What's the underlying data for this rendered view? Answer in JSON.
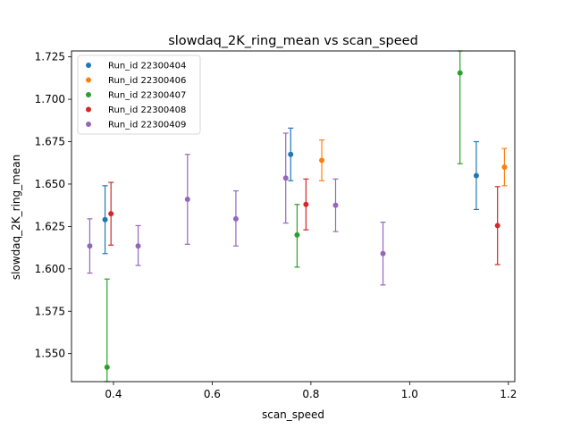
{
  "chart_data": {
    "type": "scatter",
    "title": "slowdaq_2K_ring_mean vs scan_speed",
    "xlabel": "scan_speed",
    "ylabel": "slowdaq_2K_ring_mean",
    "xlim": [
      0.315,
      1.213
    ],
    "ylim": [
      1.5335,
      1.7285
    ],
    "x_ticks": [
      0.4,
      0.6,
      0.8,
      1.0,
      1.2
    ],
    "x_tick_labels": [
      "0.4",
      "0.6",
      "0.8",
      "1.0",
      "1.2"
    ],
    "y_ticks": [
      1.55,
      1.575,
      1.6,
      1.625,
      1.65,
      1.675,
      1.7,
      1.725
    ],
    "y_tick_labels": [
      "1.550",
      "1.575",
      "1.600",
      "1.625",
      "1.650",
      "1.675",
      "1.700",
      "1.725"
    ],
    "grid": false,
    "legend_position": "top-left",
    "series": [
      {
        "name": "Run_id 22300404",
        "color": "#1f77b4",
        "points": [
          {
            "x": 0.383,
            "y": 1.629,
            "err_low": 1.609,
            "err_high": 1.649
          },
          {
            "x": 0.759,
            "y": 1.6675,
            "err_low": 1.652,
            "err_high": 1.683
          },
          {
            "x": 1.135,
            "y": 1.655,
            "err_low": 1.635,
            "err_high": 1.675
          }
        ]
      },
      {
        "name": "Run_id 22300406",
        "color": "#ff7f0e",
        "points": [
          {
            "x": 0.822,
            "y": 1.664,
            "err_low": 1.652,
            "err_high": 1.676
          },
          {
            "x": 1.192,
            "y": 1.66,
            "err_low": 1.649,
            "err_high": 1.671
          }
        ]
      },
      {
        "name": "Run_id 22300407",
        "color": "#2ca02c",
        "points": [
          {
            "x": 0.387,
            "y": 1.542,
            "err_low": 1.5335,
            "err_high": 1.594
          },
          {
            "x": 0.772,
            "y": 1.62,
            "err_low": 1.601,
            "err_high": 1.638
          },
          {
            "x": 1.102,
            "y": 1.7155,
            "err_low": 1.662,
            "err_high": 1.7285
          }
        ]
      },
      {
        "name": "Run_id 22300408",
        "color": "#d62728",
        "points": [
          {
            "x": 0.395,
            "y": 1.6325,
            "err_low": 1.614,
            "err_high": 1.651
          },
          {
            "x": 0.79,
            "y": 1.638,
            "err_low": 1.623,
            "err_high": 1.653
          },
          {
            "x": 1.178,
            "y": 1.6255,
            "err_low": 1.6025,
            "err_high": 1.6485
          }
        ]
      },
      {
        "name": "Run_id 22300409",
        "color": "#9467bd",
        "points": [
          {
            "x": 0.352,
            "y": 1.6135,
            "err_low": 1.5975,
            "err_high": 1.6295
          },
          {
            "x": 0.45,
            "y": 1.6135,
            "err_low": 1.602,
            "err_high": 1.6255
          },
          {
            "x": 0.55,
            "y": 1.641,
            "err_low": 1.6145,
            "err_high": 1.6675
          },
          {
            "x": 0.648,
            "y": 1.6295,
            "err_low": 1.6135,
            "err_high": 1.646
          },
          {
            "x": 0.749,
            "y": 1.6535,
            "err_low": 1.627,
            "err_high": 1.68
          },
          {
            "x": 0.85,
            "y": 1.6375,
            "err_low": 1.622,
            "err_high": 1.653
          },
          {
            "x": 0.946,
            "y": 1.609,
            "err_low": 1.5905,
            "err_high": 1.6275
          }
        ]
      }
    ]
  }
}
